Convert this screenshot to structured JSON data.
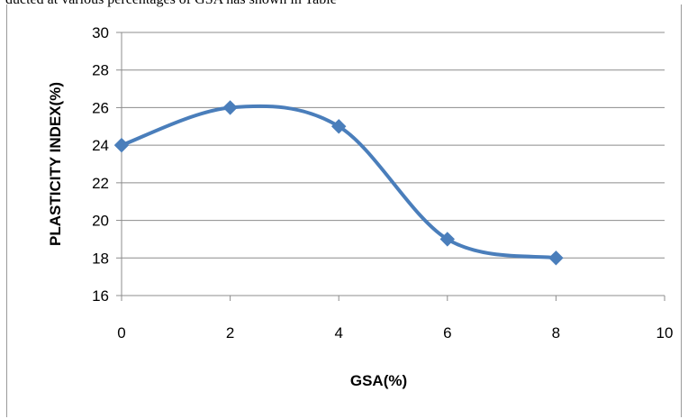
{
  "caption": "ducted at various percentages of GSA has shown in Table",
  "chart_data": {
    "type": "line",
    "title": "",
    "xlabel": "GSA(%)",
    "ylabel": "PLASTICITY  INDEX(%)",
    "xlim": [
      0,
      10
    ],
    "ylim": [
      16,
      30
    ],
    "x_ticks": [
      0,
      2,
      4,
      6,
      8,
      10
    ],
    "y_ticks": [
      16,
      18,
      20,
      22,
      24,
      26,
      28,
      30
    ],
    "grid": "horizontal",
    "legend": "none",
    "series": [
      {
        "color": "#4a7ebb",
        "marker": "diamond",
        "smooth": true,
        "points": [
          {
            "x": 0,
            "y": 24
          },
          {
            "x": 2,
            "y": 26
          },
          {
            "x": 4,
            "y": 25
          },
          {
            "x": 6,
            "y": 19
          },
          {
            "x": 8,
            "y": 18
          }
        ]
      }
    ]
  }
}
